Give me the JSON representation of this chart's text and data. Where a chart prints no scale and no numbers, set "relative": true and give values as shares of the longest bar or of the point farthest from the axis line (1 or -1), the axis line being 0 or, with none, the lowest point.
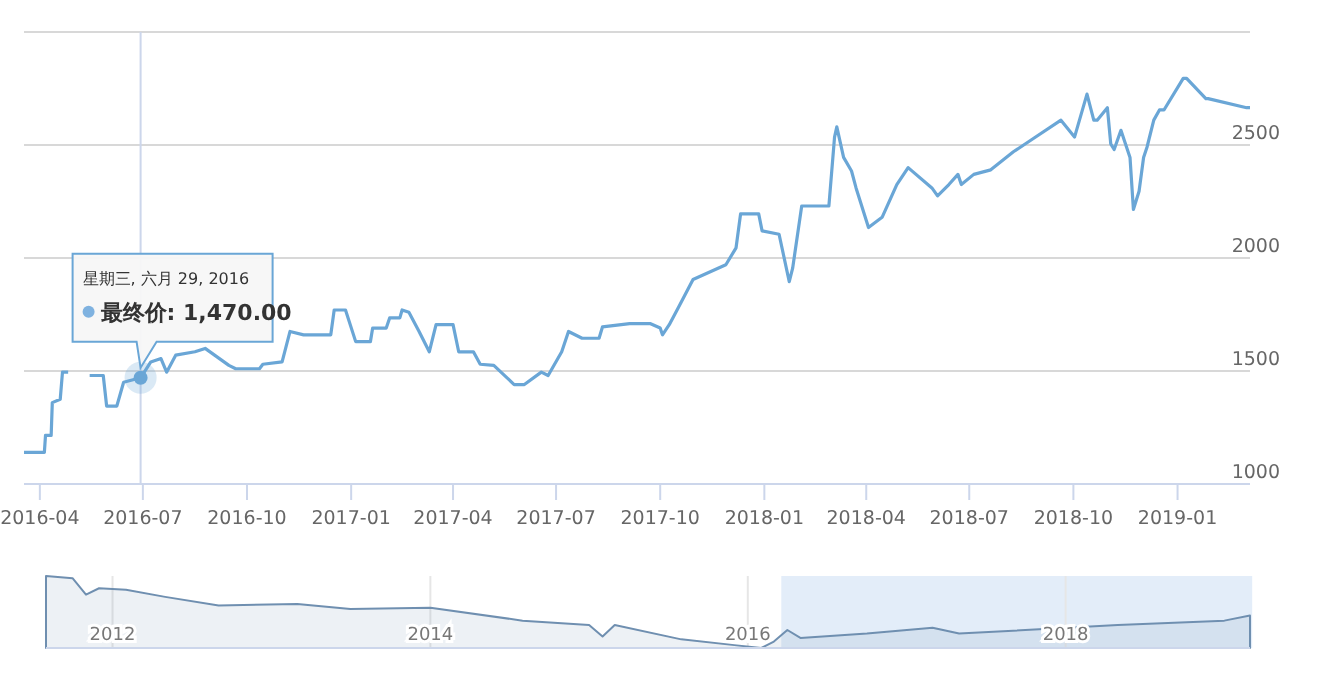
{
  "chart_data": [
    {
      "type": "line",
      "x": [
        "2016-03-18",
        "2016-04-05",
        "2016-04-06",
        "2016-04-11",
        "2016-04-12",
        "2016-04-19",
        "2016-04-21",
        "2016-04-26",
        "2016-04-27",
        "2016-05-13",
        "2016-05-15",
        "2016-05-27",
        "2016-05-30",
        "2016-06-08",
        "2016-06-14",
        "2016-06-29",
        "2016-07-08",
        "2016-07-17",
        "2016-07-22",
        "2016-07-30",
        "2016-08-16",
        "2016-08-25",
        "2016-09-15",
        "2016-09-21",
        "2016-10-12",
        "2016-10-15",
        "2016-11-01",
        "2016-11-08",
        "2016-11-20",
        "2016-12-14",
        "2016-12-17",
        "2016-12-27",
        "2017-01-05",
        "2017-01-18",
        "2017-01-20",
        "2017-02-01",
        "2017-02-04",
        "2017-02-13",
        "2017-02-15",
        "2017-02-21",
        "2017-03-02",
        "2017-03-11",
        "2017-03-17",
        "2017-04-01",
        "2017-04-06",
        "2017-04-19",
        "2017-04-25",
        "2017-05-07",
        "2017-05-25",
        "2017-06-03",
        "2017-06-18",
        "2017-06-24",
        "2017-07-06",
        "2017-07-12",
        "2017-07-24",
        "2017-08-08",
        "2017-08-11",
        "2017-09-04",
        "2017-09-22",
        "2017-10-01",
        "2017-10-03",
        "2017-10-09",
        "2017-10-18",
        "2017-10-30",
        "2017-11-28",
        "2017-12-07",
        "2017-12-11",
        "2017-12-27",
        "2017-12-30",
        "2018-01-14",
        "2018-01-23",
        "2018-01-26",
        "2018-02-03",
        "2018-02-27",
        "2018-03-04",
        "2018-03-06",
        "2018-03-12",
        "2018-03-19",
        "2018-03-23",
        "2018-04-03",
        "2018-04-15",
        "2018-04-28",
        "2018-05-08",
        "2018-05-29",
        "2018-06-03",
        "2018-06-13",
        "2018-06-21",
        "2018-06-24",
        "2018-07-05",
        "2018-07-20",
        "2018-08-09",
        "2018-08-24",
        "2018-09-20",
        "2018-10-02",
        "2018-10-13",
        "2018-10-19",
        "2018-10-22",
        "2018-10-31",
        "2018-11-03",
        "2018-11-06",
        "2018-11-12",
        "2018-11-15",
        "2018-11-20",
        "2018-11-23",
        "2018-11-28",
        "2018-12-02",
        "2018-12-05",
        "2018-12-11",
        "2018-12-16",
        "2018-12-20",
        "2019-01-06",
        "2019-01-09",
        "2019-01-26",
        "2019-01-28",
        "2019-03-03",
        "2019-03-06"
      ],
      "series": [
        {
          "color": "#6aa6d6",
          "values": [
            1140,
            1140,
            1215,
            1215,
            1360,
            1375,
            1495,
            1495,
            null,
            null,
            1480,
            1480,
            1345,
            1345,
            1450,
            1470,
            1540,
            1555,
            1495,
            1570,
            1585,
            1600,
            1525,
            1510,
            1510,
            1530,
            1540,
            1675,
            1660,
            1660,
            1770,
            1770,
            1630,
            1630,
            1690,
            1690,
            1735,
            1735,
            1770,
            1760,
            1675,
            1585,
            1705,
            1705,
            1585,
            1585,
            1530,
            1525,
            1440,
            1440,
            1495,
            1480,
            1585,
            1675,
            1645,
            1645,
            1695,
            1710,
            1710,
            1690,
            1660,
            1705,
            1790,
            1905,
            1970,
            2045,
            2195,
            2195,
            2120,
            2105,
            1895,
            1955,
            2230,
            2230,
            2535,
            2580,
            2445,
            2385,
            2310,
            2135,
            2180,
            2325,
            2400,
            2310,
            2275,
            2325,
            2370,
            2325,
            2370,
            2390,
            2470,
            2520,
            2610,
            2535,
            2725,
            2610,
            2610,
            2665,
            2505,
            2480,
            2565,
            2520,
            2445,
            2215,
            2295,
            2445,
            2490,
            2610,
            2655,
            2655,
            2795,
            2795,
            2705,
            2705,
            2665,
            2665
          ]
        }
      ],
      "xlim": [
        "2016-03-18",
        "2019-03-06"
      ],
      "xticks": [
        "2016-04",
        "2016-07",
        "2016-10",
        "2017-01",
        "2017-04",
        "2017-07",
        "2017-10",
        "2018-01",
        "2018-04",
        "2018-07",
        "2018-10",
        "2019-01"
      ],
      "ylim": [
        1000,
        3000
      ],
      "yticks": [
        1000,
        1500,
        2000,
        2500,
        {
          "value": 3000,
          "label": null
        }
      ],
      "grid": "y",
      "marker": "none",
      "line_style": "solid",
      "ref_lines": [
        {
          "axis": "x",
          "value": "2016-06-29",
          "color": "#ccd6eb"
        }
      ],
      "annotations": [
        "星期三, 六月 29, 2016",
        {
          "text": "最终价: 1,470.00",
          "x": "2016-06-29",
          "y": 1470
        }
      ]
    },
    {
      "type": "area",
      "relative": true,
      "x": [
        "2011-08",
        "2011-10",
        "2011-11",
        "2011-12",
        "2012-02",
        "2012-05",
        "2012-09",
        "2013-03",
        "2013-07",
        "2014-01",
        "2014-08",
        "2015-01",
        "2015-02",
        "2015-03",
        "2015-08",
        "2015-12",
        "2016-02",
        "2016-03",
        "2016-04",
        "2016-05",
        "2016-10",
        "2017-03",
        "2017-05",
        "2018-05",
        "2019-01",
        "2019-03"
      ],
      "series": [
        {
          "color": "#6f8fb0",
          "values": [
            1,
            0.97,
            0.74,
            0.83,
            0.81,
            0.71,
            0.59,
            0.61,
            0.54,
            0.56,
            0.38,
            0.32,
            0.16,
            0.32,
            0.12,
            0.04,
            0,
            0.09,
            0.25,
            0.14,
            0.2,
            0.28,
            0.2,
            0.32,
            0.38,
            0.45
          ]
        }
      ],
      "xlim": [
        "2011-08",
        "2019-03"
      ],
      "xticks": [
        "2012",
        "2014",
        "2016",
        "2018"
      ],
      "tick_labels": "x",
      "grid": "x",
      "bands": [
        {
          "axis": "x",
          "from": "2016-03-18",
          "to": "2019-03-06",
          "color": "#dce8f8"
        }
      ]
    }
  ]
}
